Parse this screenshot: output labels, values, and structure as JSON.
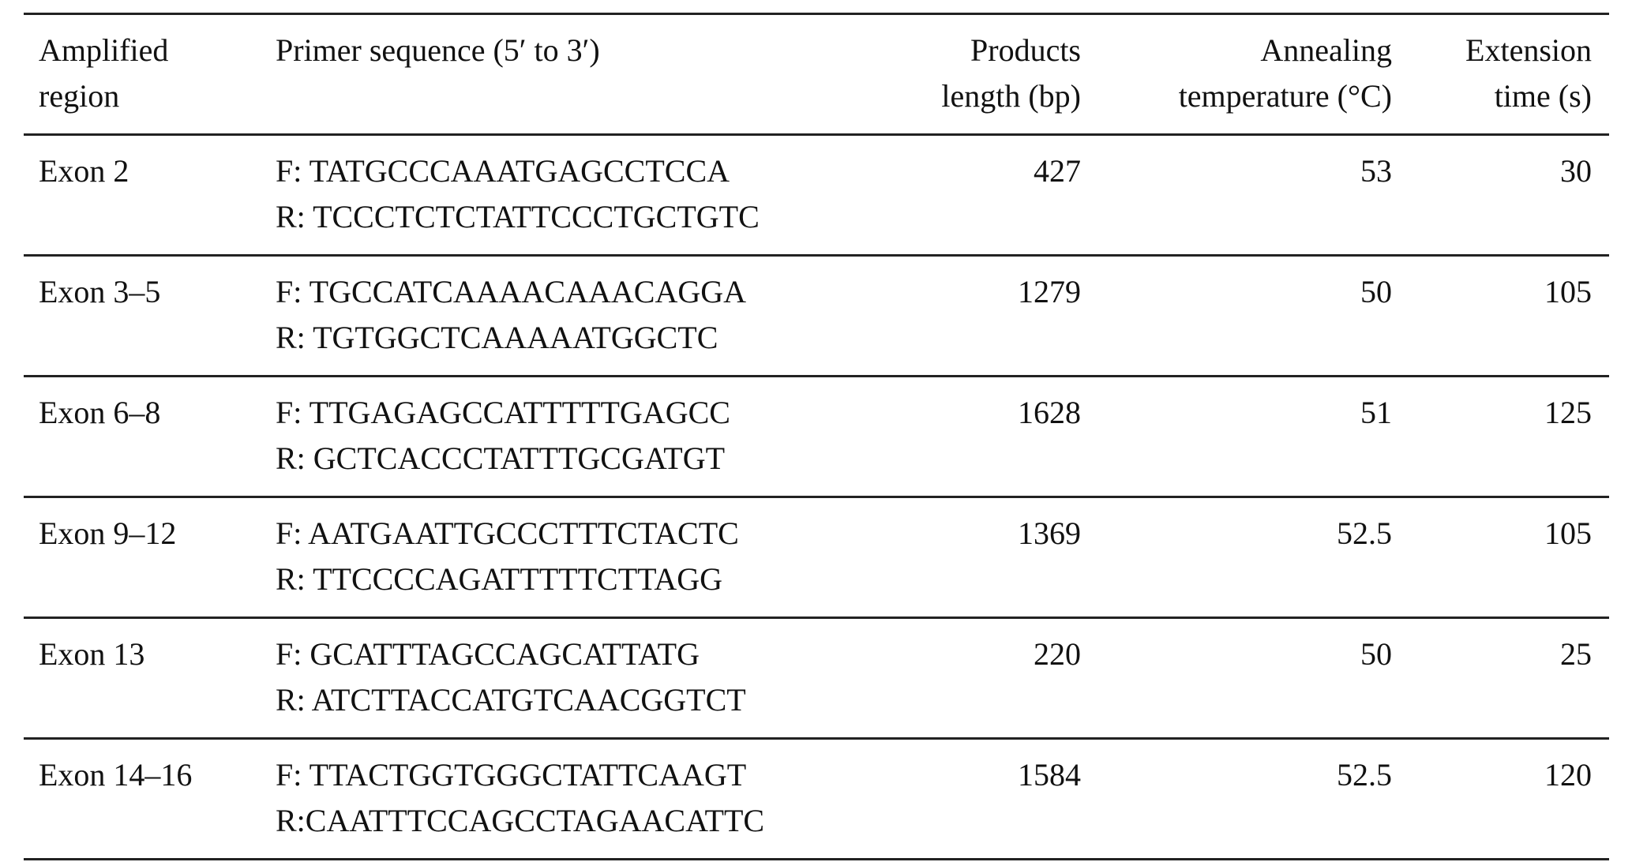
{
  "table": {
    "headers": [
      [
        "Amplified",
        "region"
      ],
      [
        "Primer sequence (5′ to 3′)"
      ],
      [
        "Products",
        "length (bp)"
      ],
      [
        "Annealing",
        "temperature (°C)"
      ],
      [
        "Extension",
        "time (s)"
      ]
    ],
    "rows": [
      {
        "region": "Exon 2",
        "forward": "F: TATGCCCAAATGAGCCTCCA",
        "reverse": "R: TCCCTCTCTATTCCCTGCTGTC",
        "length": "427",
        "annealing": "53",
        "extension": "30"
      },
      {
        "region": "Exon 3–5",
        "forward": "F: TGCCATCAAAACAAACAGGA",
        "reverse": "R: TGTGGCTCAAAAATGGCTC",
        "length": "1279",
        "annealing": "50",
        "extension": "105"
      },
      {
        "region": "Exon 6–8",
        "forward": "F: TTGAGAGCCATTTTTGAGCC",
        "reverse": "R: GCTCACCCTATTTGCGATGT",
        "length": "1628",
        "annealing": "51",
        "extension": "125"
      },
      {
        "region": "Exon 9–12",
        "forward": "F: AATGAATTGCCCTTTCTACTC",
        "reverse": "R: TTCCCCAGATTTTTCTTAGG",
        "length": "1369",
        "annealing": "52.5",
        "extension": "105"
      },
      {
        "region": "Exon 13",
        "forward": "F: GCATTTAGCCAGCATTATG",
        "reverse": "R: ATCTTACCATGTCAACGGTCT",
        "length": "220",
        "annealing": "50",
        "extension": "25"
      },
      {
        "region": "Exon 14–16",
        "forward": "F: TTACTGGTGGGCTATTCAAGT",
        "reverse": "R:CAATTTCCAGCCTAGAACATTC",
        "length": "1584",
        "annealing": "52.5",
        "extension": "120"
      }
    ]
  }
}
